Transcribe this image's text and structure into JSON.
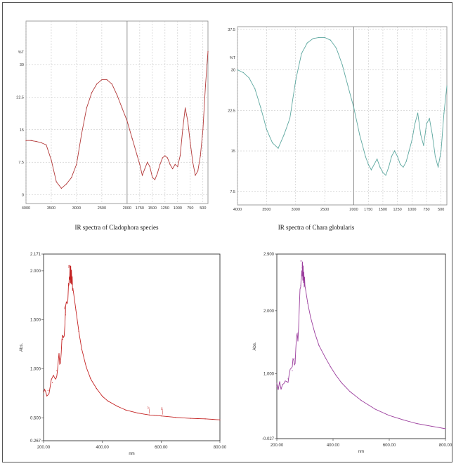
{
  "chart_data": [
    {
      "type": "line",
      "caption": "IR spectra of Cladophora species",
      "color": "#b33a3a",
      "xlim": [
        4000,
        400
      ],
      "ylim": [
        -2,
        40
      ],
      "x_ticks": [
        "4000",
        "3500",
        "3000",
        "2500",
        "2000",
        "1750",
        "1500",
        "1250",
        "1000",
        "750",
        "500"
      ],
      "y_ticks": [
        "0",
        "7.5",
        "15",
        "22.5",
        "30"
      ],
      "ylabel": "%T",
      "series": [
        {
          "x": [
            4000,
            3900,
            3800,
            3700,
            3600,
            3500,
            3400,
            3300,
            3200,
            3100,
            3000,
            2900,
            2800,
            2700,
            2600,
            2500,
            2400,
            2300,
            2200,
            2100,
            2000,
            1900,
            1800,
            1750,
            1700,
            1650,
            1600,
            1550,
            1500,
            1450,
            1400,
            1350,
            1300,
            1250,
            1200,
            1150,
            1100,
            1050,
            1000,
            950,
            900,
            850,
            800,
            750,
            700,
            650,
            600,
            550,
            500,
            450,
            400
          ],
          "y": [
            12.5,
            12.5,
            12.3,
            12.0,
            11.5,
            8,
            3,
            1.5,
            2.5,
            4,
            7,
            14,
            20,
            23.5,
            25.5,
            26.5,
            26.5,
            25.5,
            23,
            20,
            17,
            13,
            9,
            7,
            4.5,
            6,
            7.5,
            6.5,
            4,
            3.5,
            5,
            7,
            8.5,
            9,
            8.5,
            7,
            6,
            7,
            6.5,
            9,
            15,
            20,
            17,
            12,
            7.5,
            4.5,
            5.5,
            9,
            15,
            25,
            33
          ]
        }
      ]
    },
    {
      "type": "line",
      "caption": "IR spectra of Chara globularis",
      "color": "#5ea8a0",
      "xlim": [
        4000,
        400
      ],
      "ylim": [
        5,
        38
      ],
      "x_ticks": [
        "4000",
        "3500",
        "3000",
        "2500",
        "2000",
        "1750",
        "1500",
        "1250",
        "1000",
        "750",
        "500"
      ],
      "y_ticks": [
        "7.5",
        "15",
        "22.5",
        "30",
        "37.5"
      ],
      "ylabel": "%T",
      "series": [
        {
          "x": [
            4000,
            3900,
            3800,
            3700,
            3600,
            3500,
            3400,
            3300,
            3200,
            3100,
            3000,
            2900,
            2800,
            2700,
            2600,
            2500,
            2400,
            2300,
            2200,
            2100,
            2000,
            1900,
            1800,
            1750,
            1700,
            1650,
            1600,
            1550,
            1500,
            1450,
            1400,
            1350,
            1300,
            1250,
            1200,
            1150,
            1100,
            1050,
            1000,
            950,
            900,
            850,
            800,
            750,
            700,
            650,
            600,
            550,
            500,
            450,
            400
          ],
          "y": [
            30,
            29.5,
            28.5,
            26.5,
            23,
            19,
            16.5,
            15.5,
            18,
            21,
            28,
            33,
            35,
            35.8,
            36,
            36,
            35.5,
            34,
            31,
            27,
            23,
            18,
            14,
            12.5,
            11.5,
            12.5,
            13.5,
            12,
            11,
            10.5,
            12,
            14,
            15,
            14,
            12.5,
            12,
            13,
            15,
            17,
            20,
            22,
            18,
            16,
            20,
            21,
            18,
            14,
            12,
            15,
            22,
            27
          ]
        }
      ]
    },
    {
      "type": "line",
      "caption": "",
      "color": "#c42323",
      "xlim": [
        200,
        800
      ],
      "ylim": [
        0.267,
        2.171
      ],
      "xlabel": "nm",
      "ylabel": "Abs.",
      "x_ticks": [
        "200.00",
        "400.00",
        "600.00",
        "800.00"
      ],
      "y_ticks": [
        "0.267",
        "0.500",
        "1.000",
        "1.500",
        "2.000",
        "2.171"
      ],
      "peak_labels": [
        "18",
        "19",
        "17",
        "16"
      ],
      "series": [
        {
          "x": [
            200,
            215,
            230,
            245,
            255,
            265,
            275,
            285,
            290,
            295,
            300,
            310,
            320,
            330,
            345,
            360,
            380,
            400,
            420,
            450,
            480,
            520,
            560,
            600,
            650,
            700,
            750,
            800
          ],
          "y": [
            0.72,
            0.78,
            0.86,
            0.98,
            1.1,
            1.3,
            1.55,
            1.85,
            1.97,
            1.95,
            1.82,
            1.6,
            1.38,
            1.2,
            1.02,
            0.9,
            0.8,
            0.72,
            0.67,
            0.62,
            0.58,
            0.55,
            0.53,
            0.52,
            0.505,
            0.495,
            0.49,
            0.48
          ]
        }
      ]
    },
    {
      "type": "line",
      "caption": "",
      "color": "#9c3f9e",
      "xlim": [
        200,
        800
      ],
      "ylim": [
        -0.027,
        2.9
      ],
      "xlabel": "nm",
      "ylabel": "Abs.",
      "x_ticks": [
        "200.00",
        "400.00",
        "600.00",
        "800.00"
      ],
      "y_ticks": [
        "-0.027",
        "1.000",
        "2.000",
        "2.900"
      ],
      "peak_labels": [
        "5"
      ],
      "series": [
        {
          "x": [
            200,
            220,
            240,
            255,
            265,
            275,
            285,
            290,
            295,
            300,
            310,
            320,
            335,
            350,
            370,
            390,
            410,
            430,
            460,
            500,
            550,
            600,
            650,
            700,
            750,
            800
          ],
          "y": [
            0.8,
            0.83,
            0.92,
            1.05,
            1.25,
            1.65,
            2.4,
            2.68,
            2.55,
            2.4,
            2.12,
            1.9,
            1.65,
            1.45,
            1.28,
            1.12,
            0.98,
            0.86,
            0.72,
            0.58,
            0.44,
            0.34,
            0.27,
            0.21,
            0.17,
            0.13
          ]
        }
      ]
    }
  ]
}
